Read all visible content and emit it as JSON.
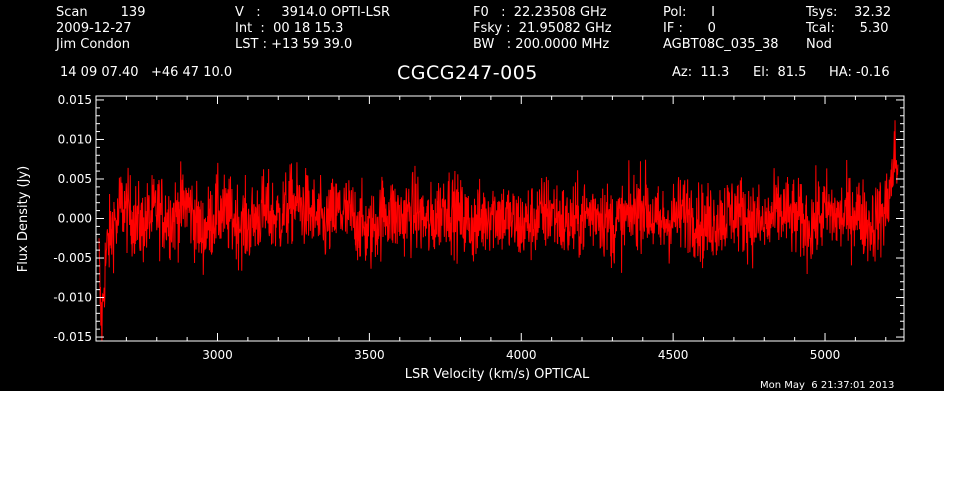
{
  "header": {
    "scan": "Scan        139",
    "date": "2009-12-27",
    "observer": "Jim Condon",
    "velocity": "V   :     3914.0 OPTI-LSR",
    "int_time": "Int  :  00 18 15.3",
    "lst": "LST : +13 59 39.0",
    "f0": "F0   :  22.23508 GHz",
    "fsky": "Fsky :  21.95082 GHz",
    "bw": "BW   : 200.0000 MHz",
    "pol": "Pol:      I",
    "if": "IF :      0",
    "project": "AGBT08C_035_38",
    "tsys": "Tsys:    32.32",
    "tcal": "Tcal:      5.30",
    "mode": "Nod",
    "coords": "14 09 07.40   +46 47 10.0",
    "az": "Az:  11.3",
    "el": "El:  81.5",
    "ha": "HA: -0.16"
  },
  "title": "CGCG247-005",
  "timestamp": "Mon May  6 21:37:01 2013",
  "colors": {
    "background": "#000000",
    "axes": "#ffffff",
    "series": "#ff0000"
  },
  "chart_data": {
    "type": "line",
    "xlabel": "LSR Velocity (km/s) OPTICAL",
    "ylabel": "Flux Density (Jy)",
    "xlim": [
      2600,
      5260
    ],
    "ylim": [
      -0.0155,
      0.0155
    ],
    "xticks": [
      3000,
      3500,
      4000,
      4500,
      5000
    ],
    "xtick_labels": [
      "3000",
      "3500",
      "4000",
      "4500",
      "5000"
    ],
    "yticks": [
      -0.015,
      -0.01,
      -0.005,
      0.0,
      0.005,
      0.01,
      0.015
    ],
    "ytick_labels": [
      "-0.015",
      "-0.010",
      "-0.005",
      "0.000",
      "0.005",
      "0.010",
      "0.015"
    ],
    "series": [
      {
        "x": [
          2610,
          2615,
          2620,
          2625,
          2630,
          2640,
          2650,
          2660,
          2670,
          2680,
          2700,
          2750,
          2800,
          2850,
          2900,
          2950,
          3000,
          3050,
          3100,
          3150,
          3200,
          3250,
          3300,
          3350,
          3400,
          3450,
          3500,
          3550,
          3600,
          3650,
          3700,
          3750,
          3800,
          3850,
          3900,
          3950,
          4000,
          4050,
          4100,
          4150,
          4200,
          4250,
          4300,
          4350,
          4400,
          4450,
          4500,
          4550,
          4600,
          4650,
          4700,
          4750,
          4800,
          4850,
          4900,
          4950,
          5000,
          5050,
          5100,
          5150,
          5200,
          5210,
          5220,
          5230,
          5240
        ],
        "y": [
          -0.005,
          -0.012,
          -0.013,
          -0.009,
          -0.006,
          -0.003,
          -0.002,
          0.0,
          -0.001,
          0.002,
          0.001,
          -0.001,
          0.001,
          0.0,
          0.002,
          -0.002,
          0.001,
          0.0,
          -0.001,
          0.001,
          0.0,
          0.002,
          0.001,
          -0.001,
          0.001,
          0.0,
          -0.002,
          0.001,
          0.0,
          0.001,
          -0.001,
          0.002,
          0.0,
          -0.001,
          0.001,
          0.0,
          -0.001,
          0.0,
          0.001,
          -0.001,
          0.0,
          0.001,
          -0.001,
          0.0,
          0.002,
          -0.001,
          0.0,
          0.001,
          -0.001,
          0.0,
          0.001,
          0.0,
          -0.001,
          0.001,
          0.0,
          -0.001,
          0.001,
          0.0,
          0.001,
          -0.001,
          0.001,
          0.003,
          0.005,
          0.008,
          0.006
        ],
        "noise_rms": 0.0025
      }
    ]
  }
}
